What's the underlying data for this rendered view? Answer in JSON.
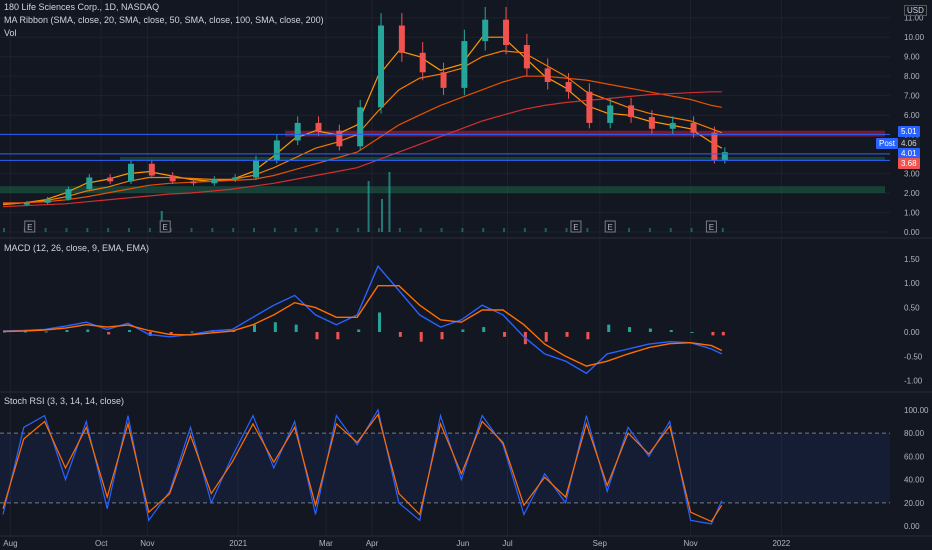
{
  "header": {
    "symbol_line": "180 Life Sciences Corp., 1D, NASDAQ",
    "ma_line": "MA Ribbon (SMA, close, 20, SMA, close, 50, SMA, close, 100, SMA, close, 200)",
    "vol_label": "Vol",
    "currency": "USD"
  },
  "panes": {
    "macd_label": "MACD (12, 26, close, 9, EMA, EMA)",
    "rsi_label": "Stoch RSI (3, 3, 14, 14, close)"
  },
  "colors": {
    "background": "#131722",
    "up": "#26a69a",
    "down": "#ef5350",
    "macd": "#2962ff",
    "signal": "#ff6d00",
    "resistance_zone": "#b71c3a",
    "support_zone": "#1b5e46",
    "h_line": "#2962ff"
  },
  "price_tags": {
    "post_label": "Post",
    "post_value": "4.06",
    "upper": "5.01",
    "mid": "4.01",
    "last": "3.68"
  },
  "earnings_marker": "E",
  "chart_data": [
    {
      "type": "candlestick",
      "title": "180 Life Sciences Corp., 1D, NASDAQ",
      "ylabel": "USD",
      "y_ticks": [
        "0.00",
        "1.00",
        "2.00",
        "3.00",
        "4.00",
        "5.00",
        "6.00",
        "7.00",
        "8.00",
        "9.00",
        "10.00",
        "11.00"
      ],
      "ylim": [
        0,
        11.5
      ],
      "x_ticks": [
        "Aug",
        "Oct",
        "Nov",
        "2021",
        "Mar",
        "Apr",
        "Jun",
        "Jul",
        "Sep",
        "Nov",
        "2022"
      ],
      "x_tick_dates": [
        "2020-08-01",
        "2020-10-01",
        "2020-11-01",
        "2021-01-01",
        "2021-03-01",
        "2021-04-01",
        "2021-06-01",
        "2021-07-01",
        "2021-09-01",
        "2021-11-01",
        "2022-01-01"
      ],
      "date_range": [
        "2020-07-25",
        "2022-03-15"
      ],
      "ohlc_weekly_close": [
        [
          "2020-07-27",
          1.4
        ],
        [
          "2020-08-10",
          1.5
        ],
        [
          "2020-08-24",
          1.7
        ],
        [
          "2020-09-07",
          2.2
        ],
        [
          "2020-09-21",
          2.8
        ],
        [
          "2020-10-05",
          2.6
        ],
        [
          "2020-10-19",
          3.5
        ],
        [
          "2020-11-02",
          2.9
        ],
        [
          "2020-11-16",
          2.6
        ],
        [
          "2020-11-30",
          2.5
        ],
        [
          "2020-12-14",
          2.7
        ],
        [
          "2020-12-28",
          2.8
        ],
        [
          "2021-01-11",
          3.7
        ],
        [
          "2021-01-25",
          4.7
        ],
        [
          "2021-02-08",
          5.6
        ],
        [
          "2021-02-22",
          5.2
        ],
        [
          "2021-03-08",
          4.4
        ],
        [
          "2021-03-22",
          6.4
        ],
        [
          "2021-04-05",
          10.6
        ],
        [
          "2021-04-19",
          9.2
        ],
        [
          "2021-05-03",
          8.2
        ],
        [
          "2021-05-17",
          7.4
        ],
        [
          "2021-05-31",
          9.8
        ],
        [
          "2021-06-14",
          10.9
        ],
        [
          "2021-06-28",
          9.6
        ],
        [
          "2021-07-12",
          8.4
        ],
        [
          "2021-07-26",
          7.7
        ],
        [
          "2021-08-09",
          7.2
        ],
        [
          "2021-08-23",
          5.6
        ],
        [
          "2021-09-06",
          6.5
        ],
        [
          "2021-09-20",
          5.9
        ],
        [
          "2021-10-04",
          5.3
        ],
        [
          "2021-10-18",
          5.6
        ],
        [
          "2021-11-01",
          5.1
        ],
        [
          "2021-11-15",
          3.7
        ],
        [
          "2021-11-22",
          4.1
        ]
      ],
      "ma_series": [
        {
          "name": "20",
          "values": [
            1.4,
            1.5,
            1.65,
            2.0,
            2.5,
            2.7,
            3.0,
            3.1,
            2.9,
            2.7,
            2.6,
            2.7,
            3.1,
            3.9,
            4.8,
            5.2,
            5.0,
            5.5,
            8.0,
            9.3,
            9.0,
            8.3,
            8.6,
            10.0,
            10.0,
            9.0,
            8.0,
            7.4,
            6.5,
            6.1,
            6.0,
            5.7,
            5.5,
            5.3,
            4.6,
            4.3
          ]
        },
        {
          "name": "50",
          "values": [
            1.45,
            1.5,
            1.6,
            1.8,
            2.1,
            2.3,
            2.6,
            2.8,
            2.8,
            2.75,
            2.7,
            2.7,
            2.9,
            3.3,
            3.8,
            4.3,
            4.6,
            5.0,
            6.2,
            7.3,
            7.9,
            8.1,
            8.4,
            9.0,
            9.3,
            9.2,
            8.6,
            8.0,
            7.2,
            6.8,
            6.4,
            6.1,
            5.9,
            5.7,
            5.3,
            5.1
          ]
        },
        {
          "name": "100",
          "values": [
            1.5,
            1.5,
            1.55,
            1.65,
            1.8,
            2.0,
            2.2,
            2.4,
            2.5,
            2.55,
            2.6,
            2.65,
            2.7,
            2.9,
            3.2,
            3.5,
            3.8,
            4.1,
            4.8,
            5.5,
            6.0,
            6.5,
            6.9,
            7.3,
            7.7,
            8.0,
            8.0,
            7.9,
            7.8,
            7.6,
            7.4,
            7.2,
            7.0,
            6.8,
            6.5,
            6.4
          ]
        },
        {
          "name": "200",
          "values": [
            1.3,
            1.35,
            1.4,
            1.45,
            1.55,
            1.65,
            1.75,
            1.85,
            1.95,
            2.0,
            2.1,
            2.2,
            2.35,
            2.5,
            2.7,
            2.9,
            3.1,
            3.3,
            3.7,
            4.1,
            4.5,
            4.9,
            5.3,
            5.7,
            6.0,
            6.3,
            6.5,
            6.65,
            6.75,
            6.85,
            6.95,
            7.05,
            7.1,
            7.15,
            7.2,
            7.2
          ]
        }
      ],
      "h_levels": [
        5.01,
        4.01,
        3.68
      ],
      "zones": [
        {
          "name": "resistance",
          "from": 4.9,
          "to": 5.2
        },
        {
          "name": "support_upper",
          "from": 3.65,
          "to": 3.85
        },
        {
          "name": "support_lower",
          "from": 2.0,
          "to": 2.35
        }
      ],
      "volume_spikes": [
        {
          "date": "2020-11-10",
          "rel": 0.35
        },
        {
          "date": "2021-03-29",
          "rel": 0.85
        },
        {
          "date": "2021-04-12",
          "rel": 1.0
        },
        {
          "date": "2021-04-07",
          "rel": 0.55
        }
      ],
      "earnings_dates": [
        "2020-08-14",
        "2020-11-13",
        "2021-08-16",
        "2021-09-08",
        "2021-11-15"
      ]
    },
    {
      "type": "line",
      "title": "MACD (12, 26, close, 9, EMA, EMA)",
      "y_ticks": [
        "1.50",
        "1.00",
        "0.50",
        "0.00",
        "-0.50",
        "-1.00"
      ],
      "ylim": [
        -1.15,
        1.6
      ],
      "series": [
        {
          "name": "MACD",
          "values": [
            0.02,
            0.03,
            0.05,
            0.12,
            0.2,
            0.05,
            0.18,
            -0.05,
            -0.1,
            -0.05,
            0.02,
            0.05,
            0.3,
            0.55,
            0.75,
            0.35,
            0.15,
            0.35,
            1.35,
            0.85,
            0.35,
            0.1,
            0.25,
            0.55,
            0.35,
            -0.1,
            -0.45,
            -0.6,
            -0.85,
            -0.45,
            -0.35,
            -0.25,
            -0.2,
            -0.22,
            -0.35,
            -0.45
          ]
        },
        {
          "name": "Signal",
          "values": [
            0.01,
            0.02,
            0.04,
            0.08,
            0.15,
            0.1,
            0.14,
            0.03,
            -0.05,
            -0.06,
            -0.02,
            0.02,
            0.15,
            0.35,
            0.6,
            0.5,
            0.3,
            0.3,
            0.95,
            0.95,
            0.55,
            0.25,
            0.2,
            0.45,
            0.45,
            0.15,
            -0.25,
            -0.5,
            -0.7,
            -0.6,
            -0.45,
            -0.32,
            -0.24,
            -0.22,
            -0.28,
            -0.38
          ]
        }
      ]
    },
    {
      "type": "line",
      "title": "Stoch RSI (3, 3, 14, 14, close)",
      "y_ticks": [
        "100.00",
        "80.00",
        "60.00",
        "40.00",
        "20.00",
        "0.00"
      ],
      "ylim": [
        -5,
        105
      ],
      "bands": [
        20,
        80
      ],
      "series": [
        {
          "name": "K",
          "values": [
            10,
            85,
            95,
            40,
            90,
            15,
            95,
            5,
            30,
            85,
            20,
            60,
            95,
            50,
            90,
            10,
            95,
            70,
            100,
            20,
            5,
            95,
            40,
            95,
            70,
            10,
            45,
            20,
            95,
            30,
            85,
            60,
            90,
            5,
            2,
            22
          ]
        },
        {
          "name": "D",
          "values": [
            15,
            75,
            90,
            50,
            85,
            25,
            88,
            12,
            28,
            78,
            28,
            55,
            88,
            55,
            85,
            18,
            88,
            72,
            96,
            28,
            10,
            88,
            45,
            90,
            72,
            18,
            42,
            25,
            88,
            35,
            80,
            62,
            86,
            12,
            4,
            18
          ]
        }
      ]
    }
  ]
}
